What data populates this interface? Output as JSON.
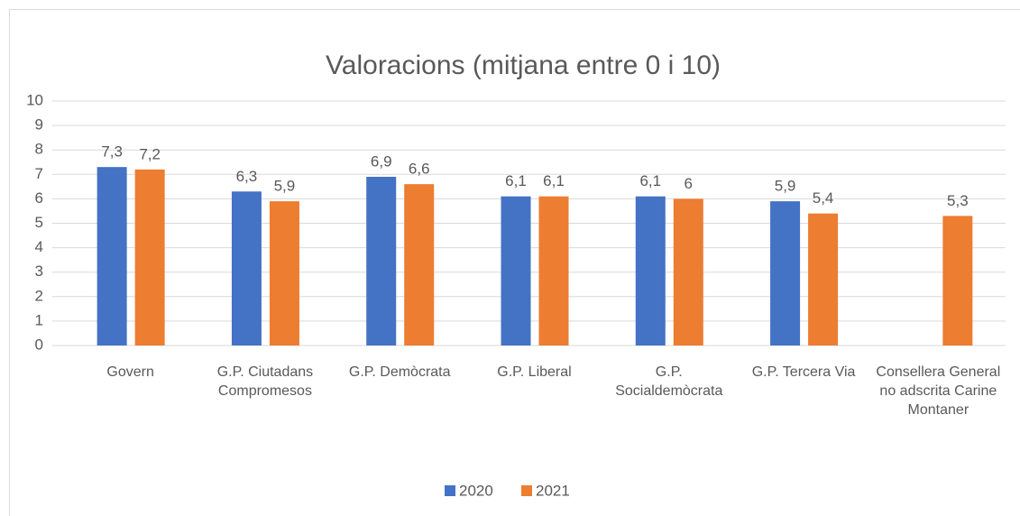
{
  "chart_data": {
    "type": "bar",
    "title": "Valoracions (mitjana entre 0 i 10)",
    "categories": [
      "Govern",
      "G.P. Ciutadans Compromesos",
      "G.P. Demòcrata",
      "G.P. Liberal",
      "G.P. Socialdemòcrata",
      "G.P. Tercera Via",
      "Consellera General no adscrita Carine Montaner"
    ],
    "series": [
      {
        "name": "2020",
        "color": "#4472c4",
        "values": [
          7.3,
          6.3,
          6.9,
          6.1,
          6.1,
          5.9,
          null
        ],
        "value_labels": [
          "7,3",
          "6,3",
          "6,9",
          "6,1",
          "6,1",
          "5,9",
          null
        ]
      },
      {
        "name": "2021",
        "color": "#ed7d31",
        "values": [
          7.2,
          5.9,
          6.6,
          6.1,
          6,
          5.4,
          5.3
        ],
        "value_labels": [
          "7,2",
          "5,9",
          "6,6",
          "6,1",
          "6",
          "5,4",
          "5,3"
        ]
      }
    ],
    "ylim": [
      0,
      10
    ],
    "yticks": [
      0,
      1,
      2,
      3,
      4,
      5,
      6,
      7,
      8,
      9,
      10
    ],
    "grid": true,
    "legend": "bottom"
  }
}
